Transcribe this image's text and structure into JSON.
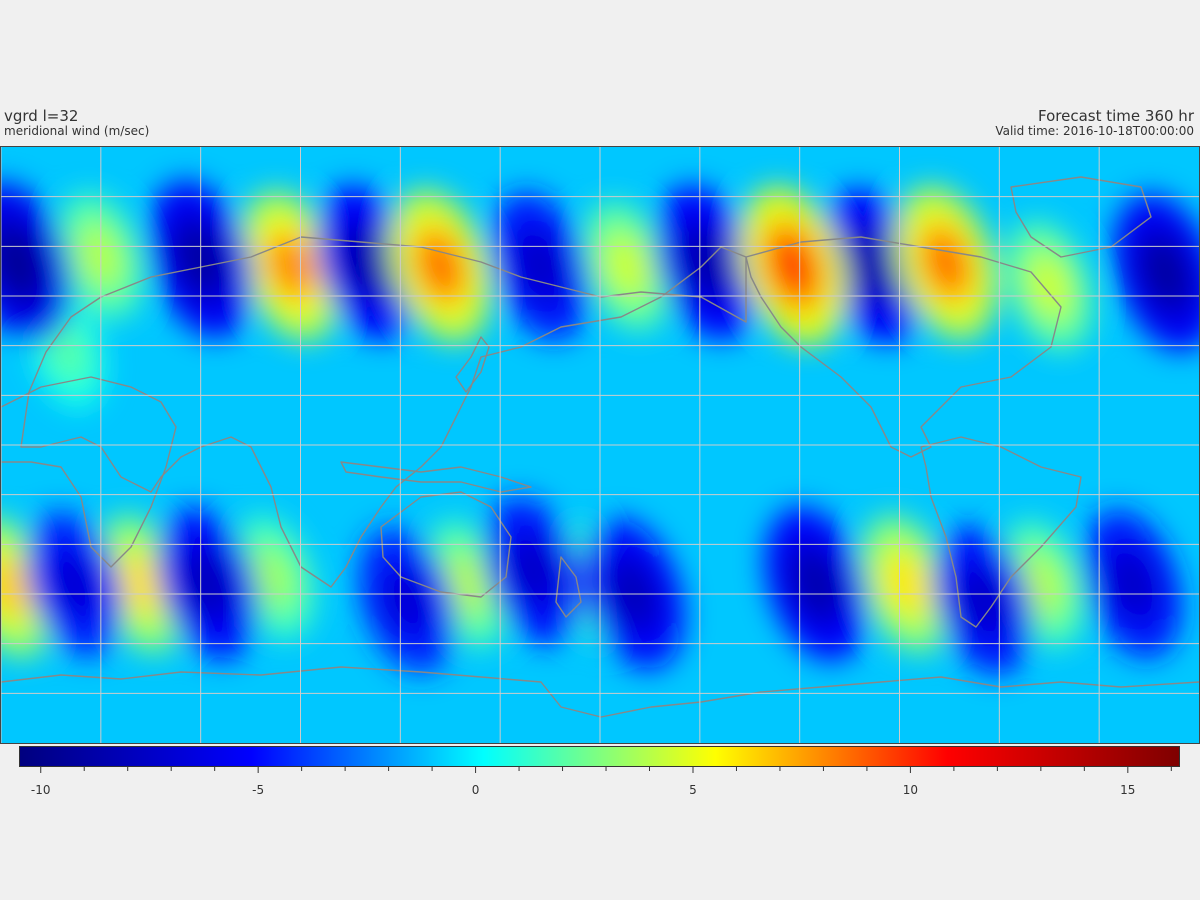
{
  "header": {
    "title": "vgrd l=32",
    "subtitle": "meridional wind (m/sec)",
    "forecast": "Forecast time 360 hr",
    "valid": "Valid time: 2016-10-18T00:00:00"
  },
  "colorbar": {
    "min": -10.5,
    "max": 16.2,
    "ticks": [
      -10,
      -5,
      0,
      5,
      10,
      15
    ],
    "tick_labels": [
      "-10",
      "-5",
      "0",
      "5",
      "10",
      "15"
    ],
    "colormap": "jet",
    "colors": [
      "#00007f",
      "#0000ff",
      "#00ffff",
      "#ffff00",
      "#ff0000",
      "#7f0000"
    ]
  },
  "map": {
    "projection": "equirectangular",
    "central_longitude": 180,
    "gridlines": true,
    "coastlines": true,
    "grid_color": "#cccccc",
    "coast_color": "#888888",
    "background_value": -1.0,
    "anomalies": [
      {
        "lon": 5,
        "lat": 55,
        "value": -9.5
      },
      {
        "lon": 30,
        "lat": 57,
        "value": 4.0
      },
      {
        "lon": 60,
        "lat": 56,
        "value": -9.0
      },
      {
        "lon": 87,
        "lat": 54,
        "value": 8.0
      },
      {
        "lon": 110,
        "lat": 55,
        "value": -8.5
      },
      {
        "lon": 132,
        "lat": 54,
        "value": 8.5
      },
      {
        "lon": 162,
        "lat": 54,
        "value": -7.5
      },
      {
        "lon": 188,
        "lat": 54,
        "value": 4.5
      },
      {
        "lon": 212,
        "lat": 55,
        "value": -8.5
      },
      {
        "lon": 238,
        "lat": 54,
        "value": 9.5
      },
      {
        "lon": 262,
        "lat": 54,
        "value": -8.5
      },
      {
        "lon": 284,
        "lat": 55,
        "value": 8.5
      },
      {
        "lon": 315,
        "lat": 48,
        "value": 4.5
      },
      {
        "lon": 350,
        "lat": 52,
        "value": -9.0
      },
      {
        "lon": 20,
        "lat": 28,
        "value": 2.0
      },
      {
        "lon": 2,
        "lat": -43,
        "value": 6.5
      },
      {
        "lon": 22,
        "lat": -42,
        "value": -7.0
      },
      {
        "lon": 42,
        "lat": -42,
        "value": 6.0
      },
      {
        "lon": 62,
        "lat": -42,
        "value": -8.0
      },
      {
        "lon": 82,
        "lat": -40,
        "value": 3.5
      },
      {
        "lon": 122,
        "lat": -47,
        "value": -7.0
      },
      {
        "lon": 140,
        "lat": -42,
        "value": 4.0
      },
      {
        "lon": 160,
        "lat": -38,
        "value": -7.5
      },
      {
        "lon": 178,
        "lat": -42,
        "value": 3.0
      },
      {
        "lon": 190,
        "lat": -45,
        "value": -8.0
      },
      {
        "lon": 245,
        "lat": -42,
        "value": -8.5
      },
      {
        "lon": 272,
        "lat": -42,
        "value": 6.0
      },
      {
        "lon": 295,
        "lat": -47,
        "value": -7.5
      },
      {
        "lon": 313,
        "lat": -42,
        "value": 4.0
      },
      {
        "lon": 340,
        "lat": -42,
        "value": -7.5
      }
    ]
  }
}
